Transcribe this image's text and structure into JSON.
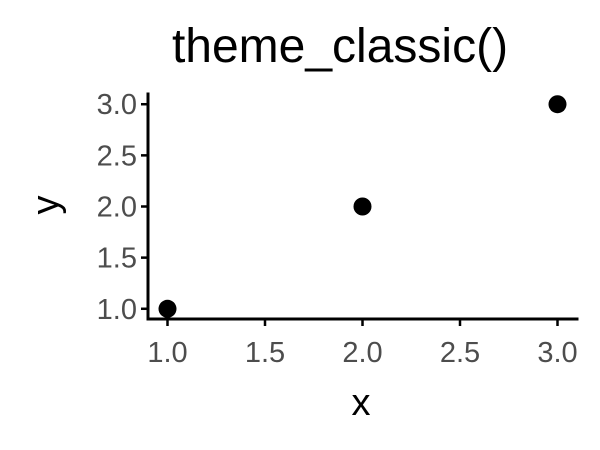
{
  "chart_data": {
    "type": "scatter",
    "title": "theme_classic()",
    "xlabel": "x",
    "ylabel": "y",
    "x": [
      1.0,
      2.0,
      3.0
    ],
    "y": [
      1.0,
      2.0,
      3.0
    ],
    "xlim": [
      0.9,
      3.1
    ],
    "ylim": [
      0.9,
      3.1
    ],
    "xticks": [
      "1.0",
      "1.5",
      "2.0",
      "2.5",
      "3.0"
    ],
    "yticks": [
      "1.0",
      "1.5",
      "2.0",
      "2.5",
      "3.0"
    ],
    "grid": false,
    "legend": "none",
    "colors": {
      "point": "#000000",
      "axis_line": "#000000",
      "tick_label": "#4d4d4d",
      "background": "#ffffff"
    }
  }
}
